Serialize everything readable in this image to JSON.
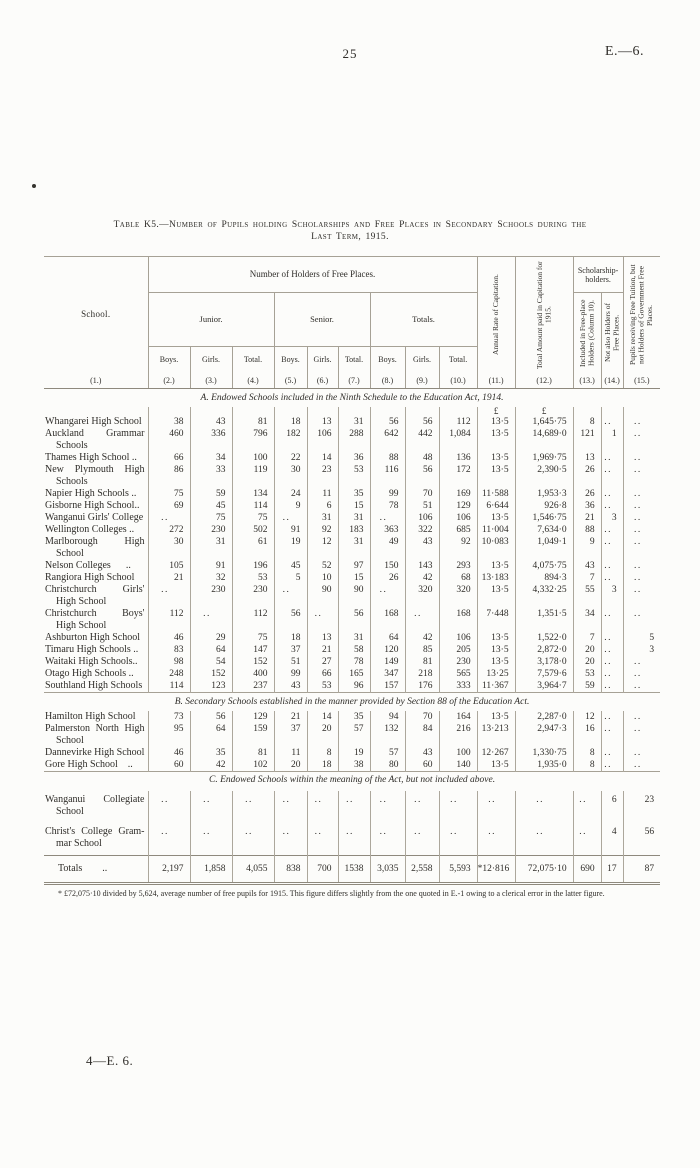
{
  "page": {
    "number": "25",
    "doc_ref": "E.—6.",
    "footer": "4—E. 6."
  },
  "table": {
    "title_lines": [
      "Table K5.—Number of Pupils holding Scholarships and Free Places in Secondary Schools during the",
      "Last Term, 1915."
    ],
    "header": {
      "school": "School.",
      "free_places_group": "Number of Holders of Free Places.",
      "junior": "Junior.",
      "senior": "Senior.",
      "totals": "Totals.",
      "boys": "Boys.",
      "girls": "Girls.",
      "total": "Total.",
      "col11": "Annual Rate of Capitation.",
      "col12": "Total Amount paid in Capitation for 1915.",
      "scholarship_group": "Scholarship-holders.",
      "col13": "Included in Free-place Holders (Column 10).",
      "col14": "Not also Holders of Free Places.",
      "col15": "Pupils receiving Free Tuition, but not Holders of Government Free Places.",
      "col_numbers": [
        "(1.)",
        "(2.)",
        "(3.)",
        "(4.)",
        "(5.)",
        "(6.)",
        "(7.)",
        "(8.)",
        "(9.)",
        "(10.)",
        "(11.)",
        "(12.)",
        "(13.)",
        "(14.)",
        "(15.)"
      ]
    },
    "sections": [
      {
        "id": "a",
        "heading": "A. Endowed Schools included in the Ninth Schedule to the Education Act, 1914.",
        "rule_above": false,
        "currency_row": [
          "",
          "",
          "",
          "",
          "",
          "",
          "",
          "",
          "",
          "£",
          "£",
          "",
          "",
          ""
        ],
        "rows": [
          {
            "name": [
              "Whangarei High School"
            ],
            "values": [
              "38",
              "43",
              "81",
              "18",
              "13",
              "31",
              "56",
              "56",
              "112",
              "13·5",
              "1,645·75",
              "8",
              "..",
              ".."
            ]
          },
          {
            "name": [
              "Auckland Grammar",
              "Schools"
            ],
            "values": [
              "460",
              "336",
              "796",
              "182",
              "106",
              "288",
              "642",
              "442",
              "1,084",
              "13·5",
              "14,689·0",
              "121",
              "1",
              ".."
            ]
          },
          {
            "name": [
              "Thames High School .."
            ],
            "values": [
              "66",
              "34",
              "100",
              "22",
              "14",
              "36",
              "88",
              "48",
              "136",
              "13·5",
              "1,969·75",
              "13",
              "..",
              ".."
            ]
          },
          {
            "name": [
              "New Plymouth High",
              "Schools"
            ],
            "values": [
              "86",
              "33",
              "119",
              "30",
              "23",
              "53",
              "116",
              "56",
              "172",
              "13·5",
              "2,390·5",
              "26",
              "..",
              ".."
            ]
          },
          {
            "name": [
              "Napier High Schools .."
            ],
            "values": [
              "75",
              "59",
              "134",
              "24",
              "11",
              "35",
              "99",
              "70",
              "169",
              "11·588",
              "1,953·3",
              "26",
              "..",
              ".."
            ]
          },
          {
            "name": [
              "Gisborne High School.."
            ],
            "values": [
              "69",
              "45",
              "114",
              "9",
              "6",
              "15",
              "78",
              "51",
              "129",
              "6·644",
              "926·8",
              "36",
              "..",
              ".."
            ]
          },
          {
            "name": [
              "Wanganui Girls' College"
            ],
            "values": [
              "..",
              "75",
              "75",
              "..",
              "31",
              "31",
              "..",
              "106",
              "106",
              "13·5",
              "1,546·75",
              "21",
              "3",
              ".."
            ]
          },
          {
            "name": [
              "Wellington Colleges .."
            ],
            "values": [
              "272",
              "230",
              "502",
              "91",
              "92",
              "183",
              "363",
              "322",
              "685",
              "11·004",
              "7,634·0",
              "88",
              "..",
              ".."
            ]
          },
          {
            "name": [
              "Marlborough High",
              "School"
            ],
            "values": [
              "30",
              "31",
              "61",
              "19",
              "12",
              "31",
              "49",
              "43",
              "92",
              "10·083",
              "1,049·1",
              "9",
              "..",
              ".."
            ]
          },
          {
            "name": [
              "Nelson Colleges  .."
            ],
            "values": [
              "105",
              "91",
              "196",
              "45",
              "52",
              "97",
              "150",
              "143",
              "293",
              "13·5",
              "4,075·75",
              "43",
              "..",
              ".."
            ]
          },
          {
            "name": [
              "Rangiora High School"
            ],
            "values": [
              "21",
              "32",
              "53",
              "5",
              "10",
              "15",
              "26",
              "42",
              "68",
              "13·183",
              "894·3",
              "7",
              "..",
              ".."
            ]
          },
          {
            "name": [
              "Christchurch Girls'",
              "High School"
            ],
            "values": [
              "..",
              "230",
              "230",
              "..",
              "90",
              "90",
              "..",
              "320",
              "320",
              "13·5",
              "4,332·25",
              "55",
              "3",
              ".."
            ]
          },
          {
            "name": [
              "Christchurch Boys'",
              "High School"
            ],
            "values": [
              "112",
              "..",
              "112",
              "56",
              "..",
              "56",
              "168",
              "..",
              "168",
              "7·448",
              "1,351·5",
              "34",
              "..",
              ".."
            ]
          },
          {
            "name": [
              "Ashburton High School"
            ],
            "values": [
              "46",
              "29",
              "75",
              "18",
              "13",
              "31",
              "64",
              "42",
              "106",
              "13·5",
              "1,522·0",
              "7",
              "..",
              "5"
            ]
          },
          {
            "name": [
              "Timaru High Schools .."
            ],
            "values": [
              "83",
              "64",
              "147",
              "37",
              "21",
              "58",
              "120",
              "85",
              "205",
              "13·5",
              "2,872·0",
              "20",
              "..",
              "3"
            ]
          },
          {
            "name": [
              "Waitaki High Schools.."
            ],
            "values": [
              "98",
              "54",
              "152",
              "51",
              "27",
              "78",
              "149",
              "81",
              "230",
              "13·5",
              "3,178·0",
              "20",
              "..",
              ".."
            ]
          },
          {
            "name": [
              "Otago High Schools .."
            ],
            "values": [
              "248",
              "152",
              "400",
              "99",
              "66",
              "165",
              "347",
              "218",
              "565",
              "13·25",
              "7,579·6",
              "53",
              "..",
              ".."
            ]
          },
          {
            "name": [
              "Southland High Schools"
            ],
            "values": [
              "114",
              "123",
              "237",
              "43",
              "53",
              "96",
              "157",
              "176",
              "333",
              "11·367",
              "3,964·7",
              "59",
              "..",
              ".."
            ]
          }
        ]
      },
      {
        "id": "b",
        "heading": "B. Secondary Schools established in the manner provided by Section 88 of the Education Act.",
        "rule_above": true,
        "rows": [
          {
            "name": [
              "Hamilton High School"
            ],
            "values": [
              "73",
              "56",
              "129",
              "21",
              "14",
              "35",
              "94",
              "70",
              "164",
              "13·5",
              "2,287·0",
              "12",
              "..",
              ".."
            ]
          },
          {
            "name": [
              "Palmerston North High",
              "School"
            ],
            "values": [
              "95",
              "64",
              "159",
              "37",
              "20",
              "57",
              "132",
              "84",
              "216",
              "13·213",
              "2,947·3",
              "16",
              "..",
              ".."
            ]
          },
          {
            "name": [
              "Dannevirke High School"
            ],
            "values": [
              "46",
              "35",
              "81",
              "11",
              "8",
              "19",
              "57",
              "43",
              "100",
              "12·267",
              "1,330·75",
              "8",
              "..",
              ".."
            ]
          },
          {
            "name": [
              "Gore High School .."
            ],
            "values": [
              "60",
              "42",
              "102",
              "20",
              "18",
              "38",
              "80",
              "60",
              "140",
              "13·5",
              "1,935·0",
              "8",
              "..",
              ".."
            ]
          }
        ]
      },
      {
        "id": "c",
        "heading": "C. Endowed Schools within the meaning of the Act, but not included above.",
        "rule_above": true,
        "rows": [
          {
            "name": [
              "Wanganui Collegiate",
              "School"
            ],
            "values": [
              "..",
              "..",
              "..",
              "..",
              "..",
              "..",
              "..",
              "..",
              "..",
              "..",
              "..",
              "..",
              "6",
              "23"
            ]
          },
          {
            "name": [
              "Christ's College Gram-",
              "mar School"
            ],
            "values": [
              "..",
              "..",
              "..",
              "..",
              "..",
              "..",
              "..",
              "..",
              "..",
              "..",
              "..",
              "..",
              "4",
              "56"
            ]
          }
        ]
      }
    ],
    "totals_row": {
      "label": "Totals  ..",
      "values": [
        "2,197",
        "1,858",
        "4,055",
        "838",
        "700",
        "1538",
        "3,035",
        "2,558",
        "5,593",
        "*12·816",
        "72,075·10",
        "690",
        "17",
        "87"
      ]
    },
    "footnote": "* £72,075·10 divided by 5,624, average number of free pupils for 1915.  This figure differs slightly from the one quoted in E.-1 owing to a clerical error in the latter figure."
  }
}
